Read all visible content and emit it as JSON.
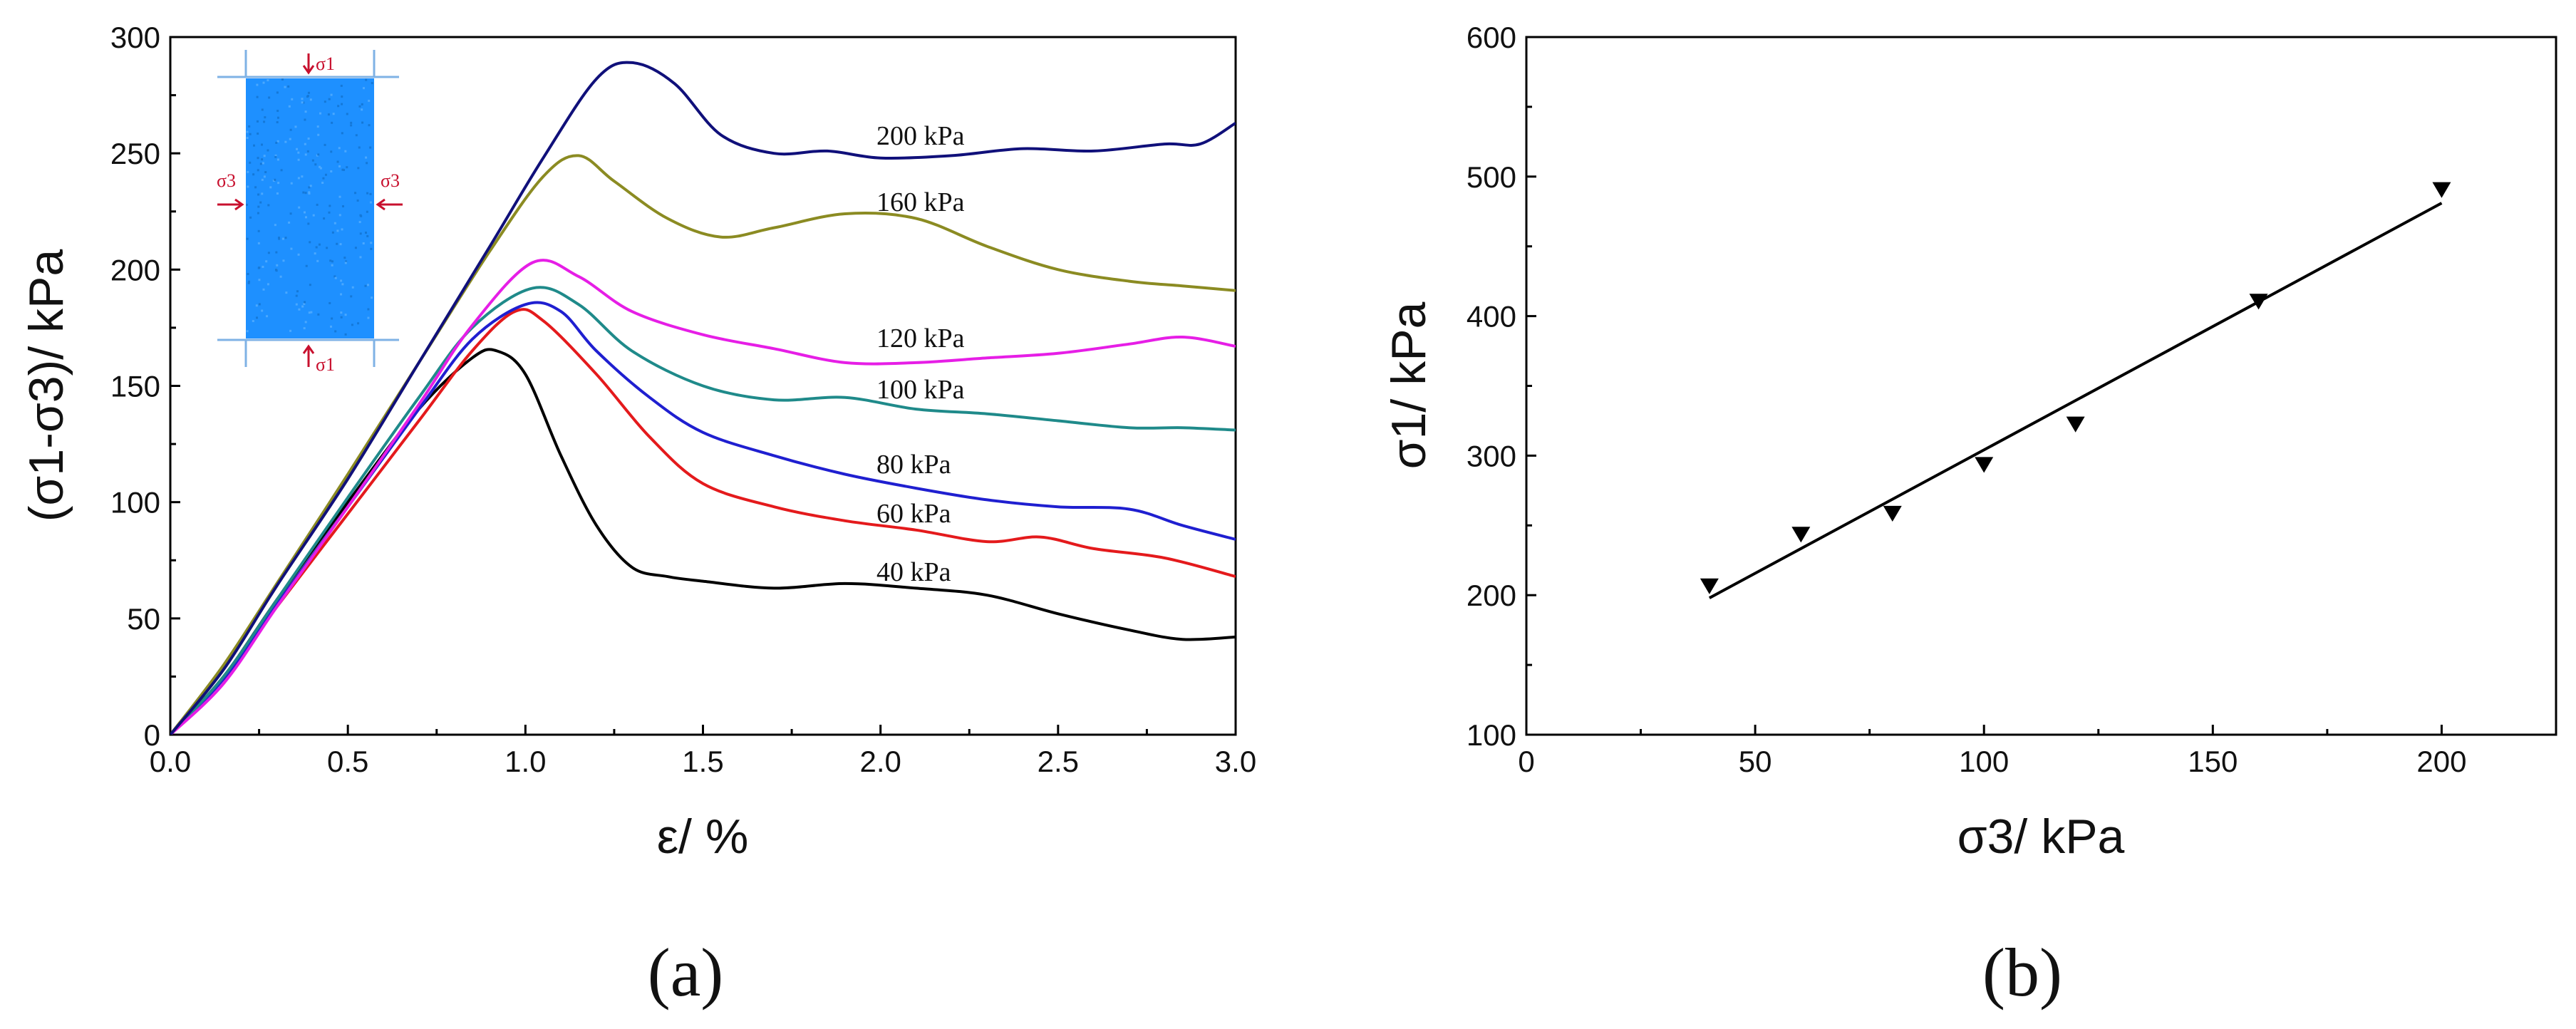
{
  "chart_data": [
    {
      "type": "line",
      "panel_label": "(a)",
      "xlabel": "ε/ %",
      "ylabel": "(σ1-σ3)/ kPa",
      "xlim": [
        0,
        3
      ],
      "ylim": [
        0,
        300
      ],
      "x_ticks": [
        "0.0",
        "0.5",
        "1.0",
        "1.5",
        "2.0",
        "2.5",
        "3.0"
      ],
      "y_ticks": [
        "0",
        "50",
        "100",
        "150",
        "200",
        "250",
        "300"
      ],
      "series": [
        {
          "name": "40 kPa",
          "label": "40 kPa",
          "color": "#000000",
          "x": [
            0,
            0.15,
            0.3,
            0.5,
            0.7,
            0.85,
            0.92,
            1.0,
            1.1,
            1.2,
            1.3,
            1.4,
            1.5,
            1.7,
            1.9,
            2.1,
            2.3,
            2.5,
            2.7,
            2.85,
            3.0
          ],
          "y": [
            0,
            25,
            58,
            100,
            140,
            162,
            165,
            155,
            120,
            90,
            72,
            68,
            66,
            63,
            65,
            63,
            60,
            52,
            45,
            41,
            42
          ]
        },
        {
          "name": "60 kPa",
          "label": "60 kPa",
          "color": "#e41a1c",
          "x": [
            0,
            0.15,
            0.3,
            0.5,
            0.7,
            0.85,
            0.97,
            1.05,
            1.2,
            1.35,
            1.5,
            1.7,
            1.9,
            2.1,
            2.3,
            2.45,
            2.6,
            2.8,
            3.0
          ],
          "y": [
            0,
            24,
            55,
            95,
            135,
            165,
            182,
            178,
            155,
            128,
            108,
            98,
            92,
            88,
            83,
            85,
            80,
            76,
            68
          ]
        },
        {
          "name": "80 kPa",
          "label": "80 kPa",
          "color": "#1f1fd0",
          "x": [
            0,
            0.15,
            0.3,
            0.5,
            0.7,
            0.85,
            1.0,
            1.1,
            1.2,
            1.35,
            1.5,
            1.7,
            1.9,
            2.1,
            2.3,
            2.5,
            2.7,
            2.85,
            3.0
          ],
          "y": [
            0,
            24,
            56,
            98,
            140,
            170,
            185,
            182,
            165,
            145,
            130,
            120,
            112,
            106,
            101,
            98,
            97,
            90,
            84
          ]
        },
        {
          "name": "100 kPa",
          "label": "100 kPa",
          "color": "#1f8a8a",
          "x": [
            0,
            0.15,
            0.3,
            0.5,
            0.7,
            0.85,
            1.02,
            1.15,
            1.3,
            1.5,
            1.7,
            1.9,
            2.1,
            2.3,
            2.5,
            2.7,
            2.85,
            3.0
          ],
          "y": [
            0,
            25,
            58,
            102,
            145,
            175,
            192,
            185,
            165,
            150,
            144,
            145,
            140,
            138,
            135,
            132,
            132,
            131
          ]
        },
        {
          "name": "120 kPa",
          "label": "120 kPa",
          "color": "#e61ee6",
          "x": [
            0,
            0.15,
            0.3,
            0.5,
            0.7,
            0.85,
            1.02,
            1.15,
            1.3,
            1.5,
            1.7,
            1.9,
            2.1,
            2.3,
            2.5,
            2.7,
            2.85,
            3.0
          ],
          "y": [
            0,
            22,
            55,
            98,
            142,
            176,
            203,
            197,
            182,
            172,
            166,
            160,
            160,
            162,
            164,
            168,
            171,
            167
          ]
        },
        {
          "name": "160 kPa",
          "label": "160 kPa",
          "color": "#8b8b22",
          "x": [
            0,
            0.15,
            0.3,
            0.5,
            0.7,
            0.9,
            1.05,
            1.15,
            1.25,
            1.4,
            1.55,
            1.7,
            1.9,
            2.1,
            2.3,
            2.5,
            2.7,
            2.85,
            3.0
          ],
          "y": [
            0,
            30,
            65,
            112,
            160,
            208,
            240,
            249,
            238,
            222,
            214,
            218,
            224,
            222,
            210,
            200,
            195,
            193,
            191
          ]
        },
        {
          "name": "200 kPa",
          "label": "200 kPa",
          "color": "#10107a",
          "x": [
            0,
            0.15,
            0.3,
            0.5,
            0.7,
            0.9,
            1.05,
            1.2,
            1.3,
            1.42,
            1.55,
            1.7,
            1.85,
            2.0,
            2.2,
            2.4,
            2.6,
            2.8,
            2.9,
            3.0
          ],
          "y": [
            0,
            28,
            64,
            110,
            160,
            210,
            248,
            282,
            289,
            280,
            258,
            250,
            251,
            248,
            249,
            252,
            251,
            254,
            254,
            263
          ]
        }
      ],
      "inset": {
        "label_top": "σ1",
        "label_bottom": "σ1",
        "label_left": "σ3",
        "label_right": "σ3",
        "fill_color": "#1e90ff"
      }
    },
    {
      "type": "scatter",
      "panel_label": "(b)",
      "xlabel": "σ3/ kPa",
      "ylabel": "σ1/ kPa",
      "xlim": [
        0,
        225
      ],
      "ylim": [
        100,
        600
      ],
      "x_ticks": [
        "0",
        "50",
        "100",
        "150",
        "200"
      ],
      "y_ticks": [
        "100",
        "200",
        "300",
        "400",
        "500",
        "600"
      ],
      "points": [
        {
          "x": 40,
          "y": 207
        },
        {
          "x": 60,
          "y": 244
        },
        {
          "x": 80,
          "y": 259
        },
        {
          "x": 100,
          "y": 294
        },
        {
          "x": 120,
          "y": 323
        },
        {
          "x": 160,
          "y": 411
        },
        {
          "x": 200,
          "y": 491
        }
      ],
      "fit_line": {
        "x": [
          40,
          200
        ],
        "y": [
          198,
          481
        ]
      }
    }
  ]
}
